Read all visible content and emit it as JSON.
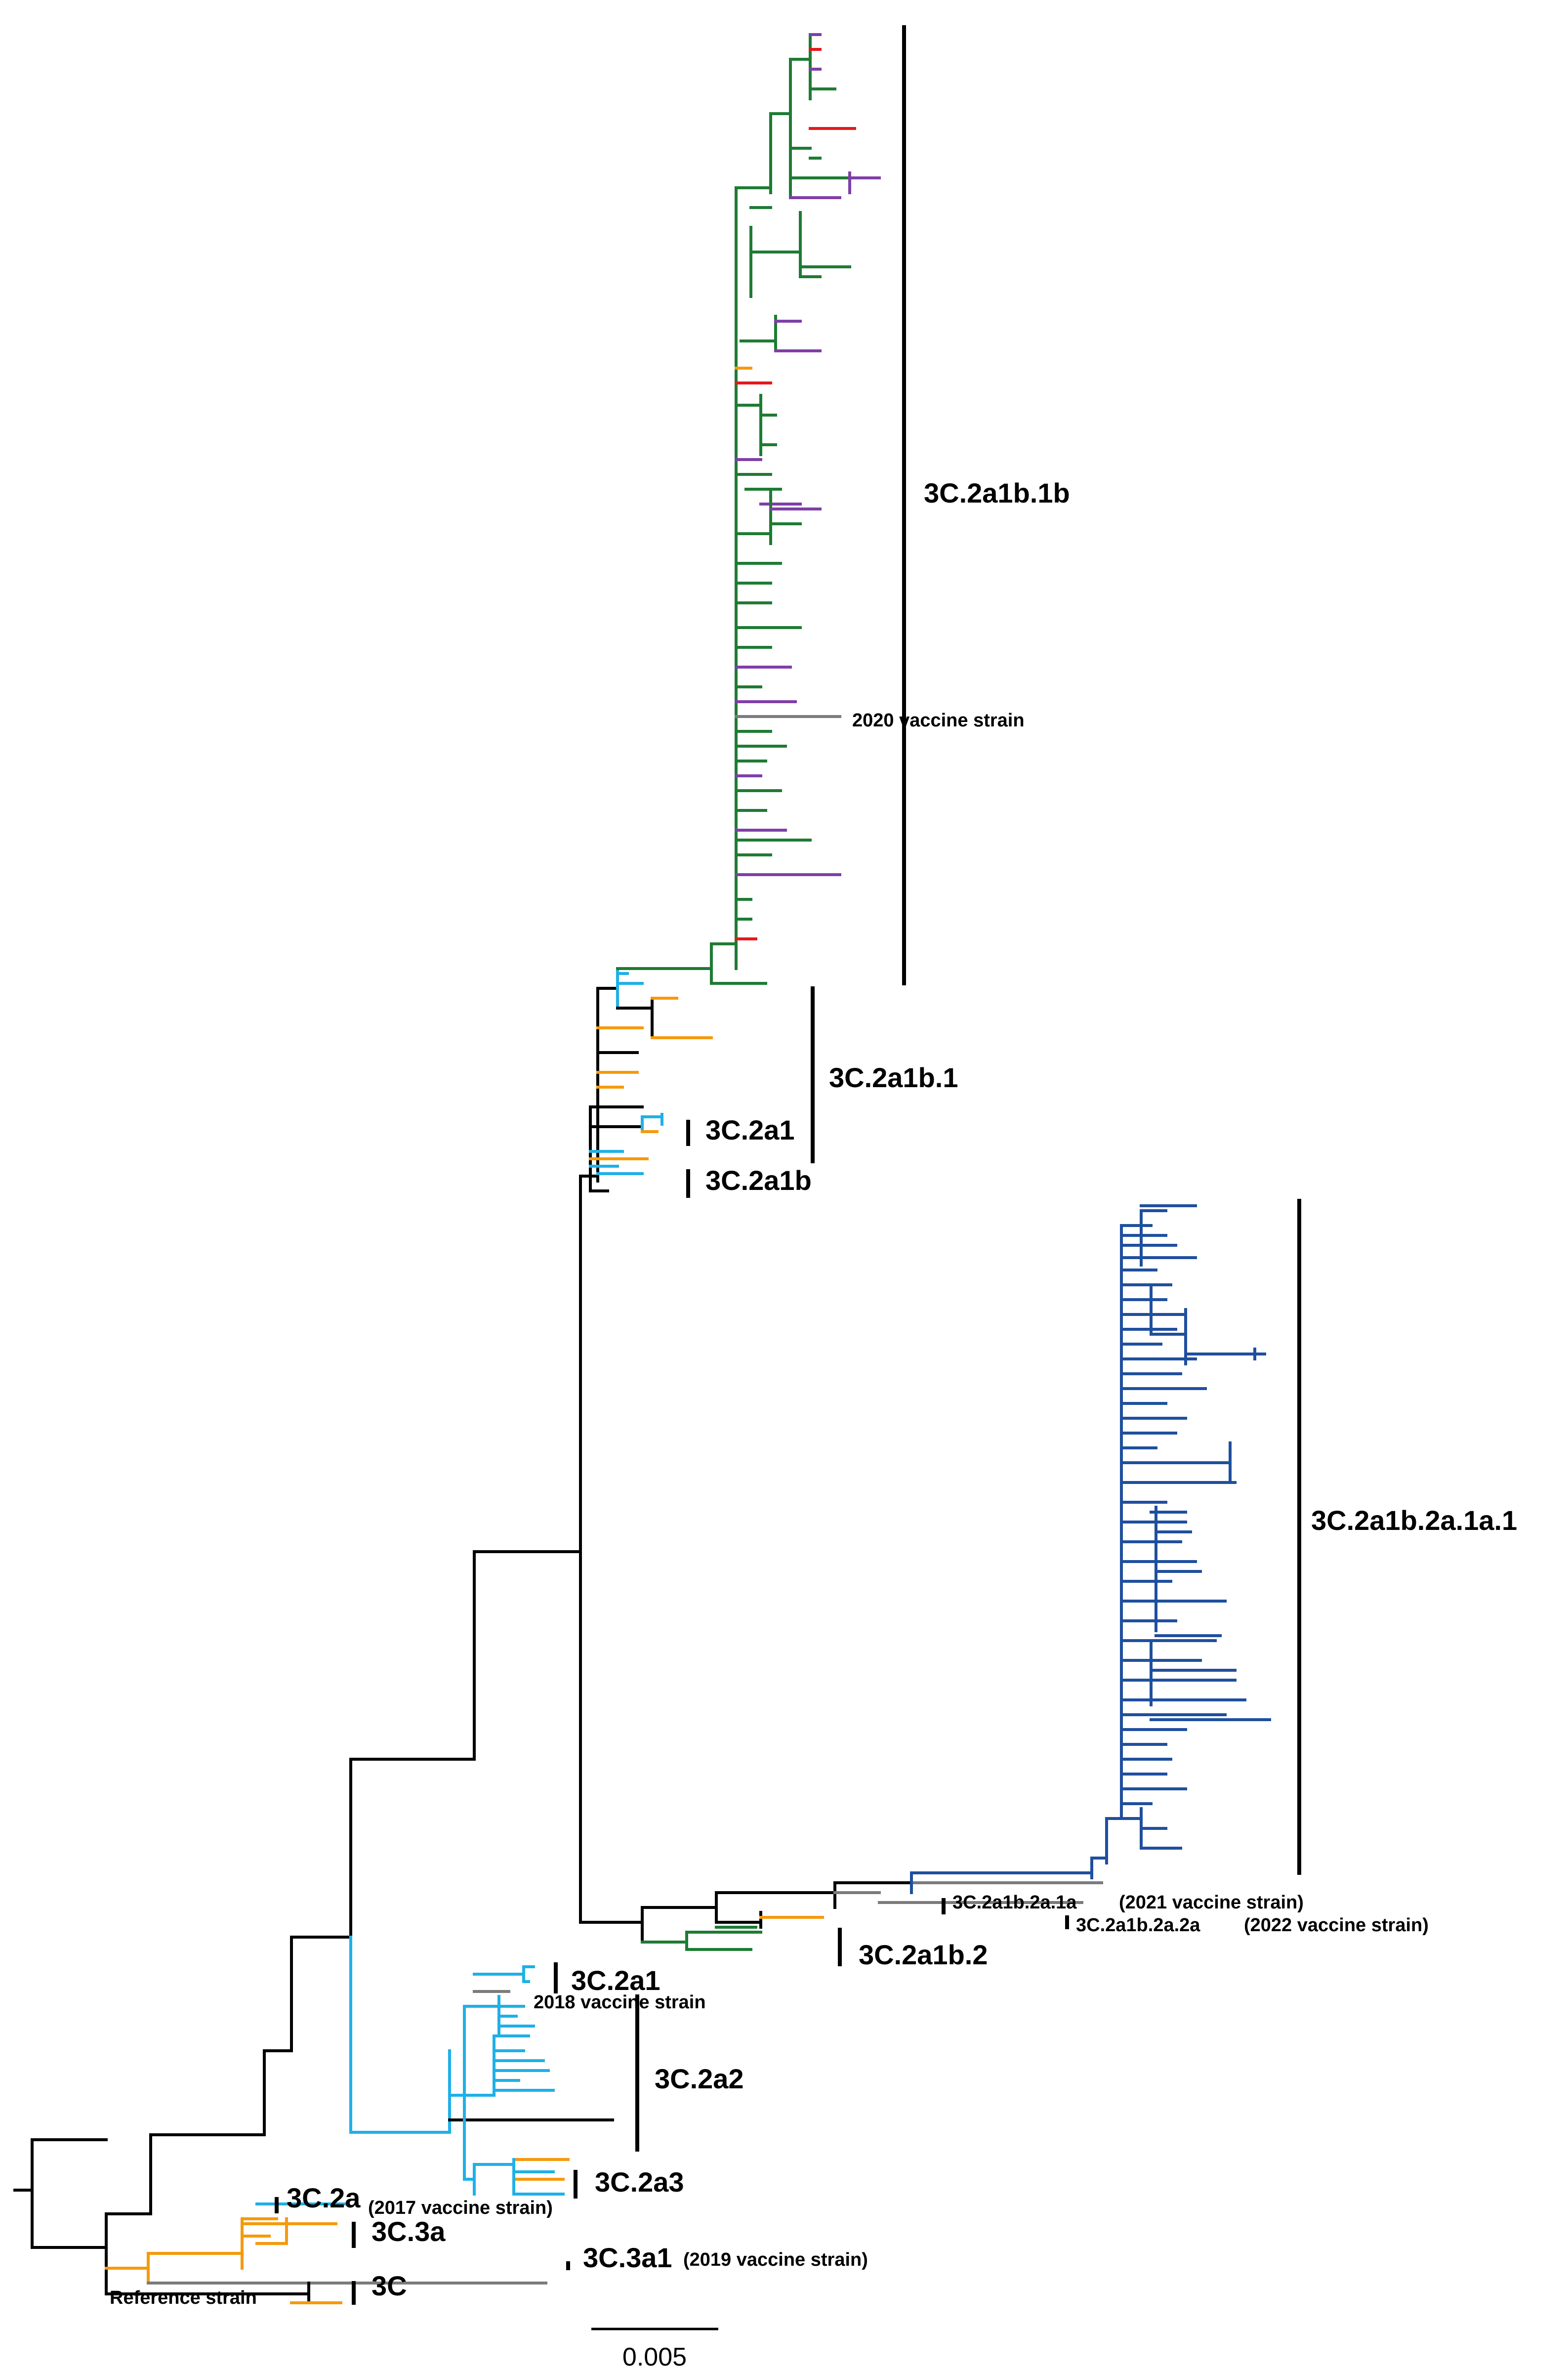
{
  "figure": {
    "type": "phylogenetic_tree",
    "branch_colors": {
      "black": "#000000",
      "green": "#1e7b34",
      "purple": "#7f3fa7",
      "red": "#e31a1c",
      "orange": "#f59a0c",
      "cyan": "#1fb0e6",
      "blue": "#1f4f9e",
      "grey": "#7b7b7b"
    }
  },
  "clades": {
    "c_3c2a1b1b": "3C.2a1b.1b",
    "c_3c2a1b1": "3C.2a1b.1",
    "c_3c2a1_upper": "3C.2a1",
    "c_3c2a1b": "3C.2a1b",
    "c_3c2a1b2a1a1": "3C.2a1b.2a.1a.1",
    "c_3c2a1b2a1a": "3C.2a1b.2a.1a",
    "c_3c2a1b2a2a": "3C.2a1b.2a.2a",
    "c_3c2a1b2": "3C.2a1b.2",
    "c_3c2a1_lower": "3C.2a1",
    "c_3c2a2": "3C.2a2",
    "c_3c2a3": "3C.2a3",
    "c_3c2a": "3C.2a",
    "c_3c3a": "3C.3a",
    "c_3c3a1": "3C.3a1",
    "c_3c": "3C"
  },
  "annotations": {
    "vaccine_2020": "2020 vaccine strain",
    "vaccine_2021": "(2021 vaccine strain)",
    "vaccine_2022": "(2022 vaccine strain)",
    "vaccine_2018": "2018 vaccine strain",
    "vaccine_2017": "(2017 vaccine strain)",
    "vaccine_2019": "(2019 vaccine strain)",
    "reference": "Reference strain"
  },
  "scale_bar": {
    "label": "0.005"
  }
}
